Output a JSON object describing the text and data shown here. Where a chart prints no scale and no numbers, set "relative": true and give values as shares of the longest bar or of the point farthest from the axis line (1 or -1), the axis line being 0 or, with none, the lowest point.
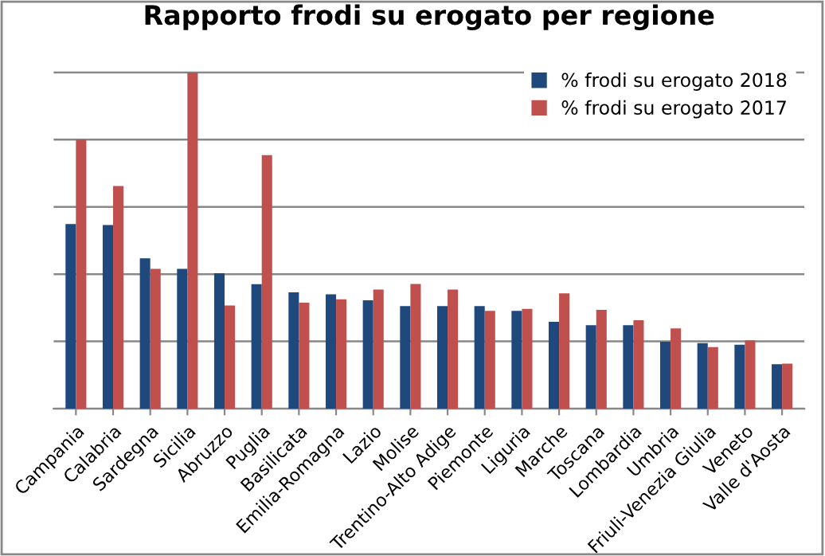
{
  "chart_data": {
    "type": "bar",
    "title": "Rapporto frodi su erogato per regione",
    "relative": true,
    "grid": "y",
    "legend": "top right",
    "categories": [
      "Campania",
      "Calabria",
      "Sardegna",
      "Sicilia",
      "Abruzzo",
      "Puglia",
      "Basilicata",
      "Emilia-Romagna",
      "Lazio",
      "Molise",
      "Trentino-Alto Adige",
      "Piemonte",
      "Liguria",
      "Marche",
      "Toscana",
      "Lombardia",
      "Umbria",
      "Friuli-Venezia Giulia",
      "Veneto",
      "Valle d'Aosta"
    ],
    "series": [
      {
        "name": "% frodi su erogato 2018",
        "color": "#1f497d",
        "values": [
          0.549,
          0.546,
          0.447,
          0.416,
          0.403,
          0.37,
          0.346,
          0.34,
          0.322,
          0.305,
          0.305,
          0.305,
          0.291,
          0.258,
          0.248,
          0.248,
          0.199,
          0.195,
          0.19,
          0.132
        ]
      },
      {
        "name": "% frodi su erogato 2017",
        "color": "#c0504d",
        "values": [
          0.8,
          0.662,
          0.416,
          1,
          0.307,
          0.754,
          0.315,
          0.325,
          0.354,
          0.371,
          0.354,
          0.291,
          0.297,
          0.343,
          0.294,
          0.263,
          0.239,
          0.183,
          0.203,
          0.134
        ]
      }
    ]
  }
}
